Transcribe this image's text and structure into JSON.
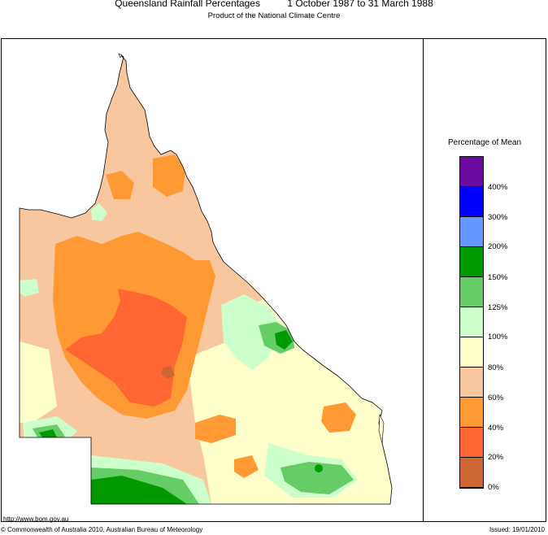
{
  "header": {
    "title": "Queensland Rainfall Percentages          1 October 1987 to 31 March 1988",
    "subtitle": "Product of the National Climate Centre"
  },
  "legend": {
    "title": "Percentage of Mean",
    "classes": [
      {
        "label": "",
        "color": "#6b0aa0"
      },
      {
        "label": "400%",
        "color": "#0000ff"
      },
      {
        "label": "300%",
        "color": "#6699ff"
      },
      {
        "label": "200%",
        "color": "#009900"
      },
      {
        "label": "150%",
        "color": "#66cc66"
      },
      {
        "label": "125%",
        "color": "#ccffcc"
      },
      {
        "label": "100%",
        "color": "#ffffcc"
      },
      {
        "label": "80%",
        "color": "#f9c79f"
      },
      {
        "label": "60%",
        "color": "#ff9933"
      },
      {
        "label": "40%",
        "color": "#ff6633"
      },
      {
        "label": "20%",
        "color": "#cc6633"
      },
      {
        "label": "0%",
        "color": ""
      }
    ]
  },
  "footer": {
    "url": "http://www.bom.gov.au",
    "copyright": "© Commonwealth of Australia 2010, Australian Bureau of Meteorology",
    "issued": "Issued: 19/01/2010"
  }
}
